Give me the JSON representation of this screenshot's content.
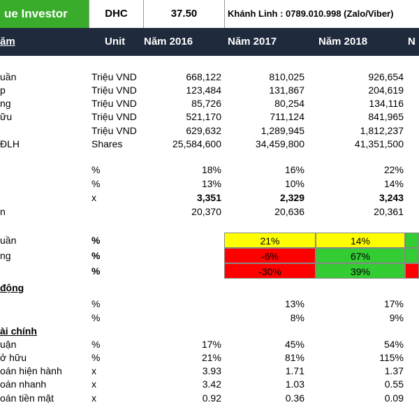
{
  "topbar": {
    "brand": "ue Investor",
    "ticker": "DHC",
    "price": "37.50",
    "contact": "Khánh Linh : 0789.010.998 (Zalo/Viber)"
  },
  "header": {
    "label": "ăm",
    "unit": "Unit",
    "years": [
      "Năm 2016",
      "Năm 2017",
      "Năm 2018"
    ]
  },
  "rows1": [
    {
      "label": "uần",
      "unit": "Triệu VND",
      "v": [
        "668,122",
        "810,025",
        "926,654"
      ]
    },
    {
      "label": "p",
      "unit": "Triệu VND",
      "v": [
        "123,484",
        "131,867",
        "204,619"
      ]
    },
    {
      "label": "ng",
      "unit": "Triệu VND",
      "v": [
        "85,726",
        "80,254",
        "134,116"
      ]
    },
    {
      "label": "ữu",
      "unit": "Triệu VND",
      "v": [
        "521,170",
        "711,124",
        "841,965"
      ]
    },
    {
      "label": "",
      "unit": "Triệu VND",
      "v": [
        "629,632",
        "1,289,945",
        "1,812,237"
      ]
    },
    {
      "label": "ĐLH",
      "unit": "Shares",
      "v": [
        "25,584,600",
        "34,459,800",
        "41,351,500"
      ]
    }
  ],
  "rows2": [
    {
      "label": "",
      "unit": "%",
      "v": [
        "18%",
        "16%",
        "22%"
      ]
    },
    {
      "label": "",
      "unit": "%",
      "v": [
        "13%",
        "10%",
        "14%"
      ]
    },
    {
      "label": "",
      "unit": "x",
      "v": [
        "3,351",
        "2,329",
        "3,243"
      ]
    },
    {
      "label": "n",
      "unit": "",
      "v": [
        "20,370",
        "20,636",
        "20,361"
      ]
    }
  ],
  "growth": [
    {
      "label": "uần",
      "unit": "%",
      "v2": "21%",
      "v3": "14%",
      "c2": "#ffff00",
      "c3": "#ffff00",
      "c4": "#33cc33"
    },
    {
      "label": "ng",
      "unit": "%",
      "v2": "-6%",
      "v3": "67%",
      "c2": "#ff0000",
      "c3": "#33cc33",
      "c4": "#33cc33"
    },
    {
      "label": "",
      "unit": "%",
      "v2": "-30%",
      "v3": "39%",
      "c2": "#ff0000",
      "c3": "#33cc33",
      "c4": "#ff0000"
    }
  ],
  "section_ops": "động",
  "ops": [
    {
      "label": "",
      "unit": "%",
      "v": [
        "",
        "13%",
        "17%"
      ]
    },
    {
      "label": "",
      "unit": "%",
      "v": [
        "",
        "8%",
        "9%"
      ]
    }
  ],
  "section_fin": "ài chính",
  "fin": [
    {
      "label": "uận",
      "unit": "%",
      "v": [
        "17%",
        "45%",
        "54%"
      ]
    },
    {
      "label": "ở hữu",
      "unit": "%",
      "v": [
        "21%",
        "81%",
        "115%"
      ]
    },
    {
      "label": "oán hiện hành",
      "unit": "x",
      "v": [
        "3.93",
        "1.71",
        "1.37"
      ]
    },
    {
      "label": "oán nhanh",
      "unit": "x",
      "v": [
        "3.42",
        "1.03",
        "0.55"
      ]
    },
    {
      "label": "oán tiền mặt",
      "unit": "x",
      "v": [
        "0.92",
        "0.36",
        "0.09"
      ]
    }
  ]
}
